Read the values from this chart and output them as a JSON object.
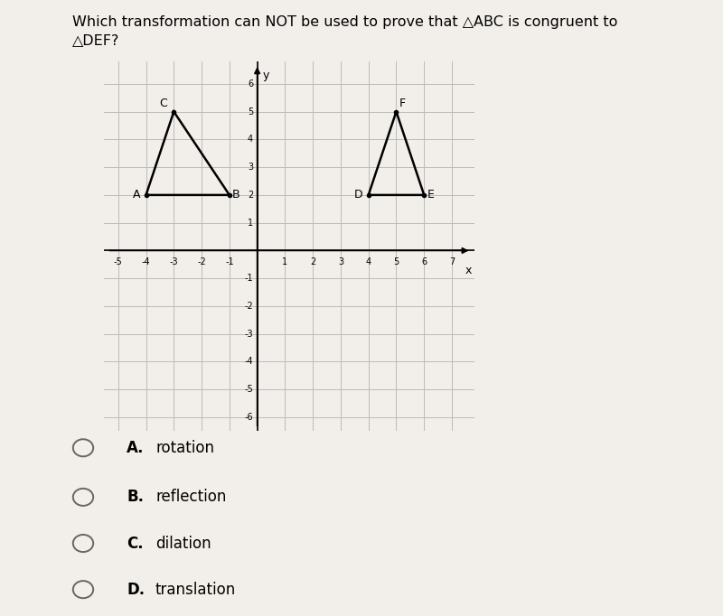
{
  "title_line1": "Which transformation can NOT be used to prove that △ABC is congruent to",
  "title_line2": "△DEF?",
  "triangle_ABC": {
    "A": [
      -4,
      2
    ],
    "B": [
      -1,
      2
    ],
    "C": [
      -3,
      5
    ]
  },
  "triangle_DEF": {
    "D": [
      4,
      2
    ],
    "E": [
      6,
      2
    ],
    "F": [
      5,
      5
    ]
  },
  "xmin": -5.5,
  "xmax": 7.8,
  "ymin": -6.5,
  "ymax": 6.8,
  "grid_color": "#bbbbbb",
  "triangle_color": "#000000",
  "axis_color": "#000000",
  "background_color": "#f2efea",
  "plot_bg_color": "#dedad2",
  "options": [
    {
      "label": "A.",
      "text": "rotation"
    },
    {
      "label": "B.",
      "text": "reflection"
    },
    {
      "label": "C.",
      "text": "dilation"
    },
    {
      "label": "D.",
      "text": "translation"
    }
  ],
  "fig_width": 8.0,
  "fig_height": 6.82,
  "dpi": 100,
  "title_fontsize": 11.5,
  "label_fontsize": 9,
  "tick_fontsize": 7,
  "option_fontsize": 12
}
